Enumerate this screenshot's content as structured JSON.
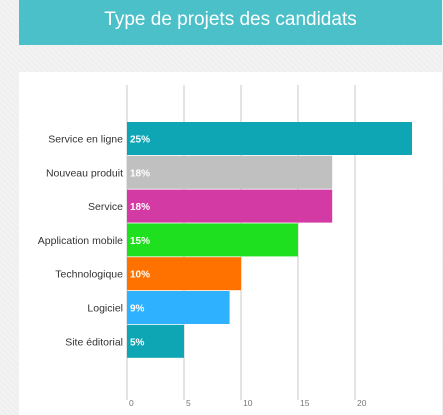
{
  "chart_data": {
    "type": "bar",
    "orientation": "horizontal",
    "title": "Type de projets des candidats",
    "categories": [
      "Service en ligne",
      "Nouveau produit",
      "Service",
      "Application mobile",
      "Technologique",
      "Logiciel",
      "Site éditorial"
    ],
    "values": [
      25,
      18,
      18,
      15,
      10,
      9,
      5
    ],
    "value_labels": [
      "25%",
      "18%",
      "18%",
      "15%",
      "10%",
      "9%",
      "5%"
    ],
    "colors": [
      "#0ea5b5",
      "#c0c0c0",
      "#d43aa3",
      "#1ee01e",
      "#ff7200",
      "#2eb1ff",
      "#0ea5b5"
    ],
    "xlim": [
      0,
      25
    ],
    "xticks": [
      0,
      5,
      10,
      15,
      20
    ],
    "grid": "vertical",
    "legend": "none"
  }
}
